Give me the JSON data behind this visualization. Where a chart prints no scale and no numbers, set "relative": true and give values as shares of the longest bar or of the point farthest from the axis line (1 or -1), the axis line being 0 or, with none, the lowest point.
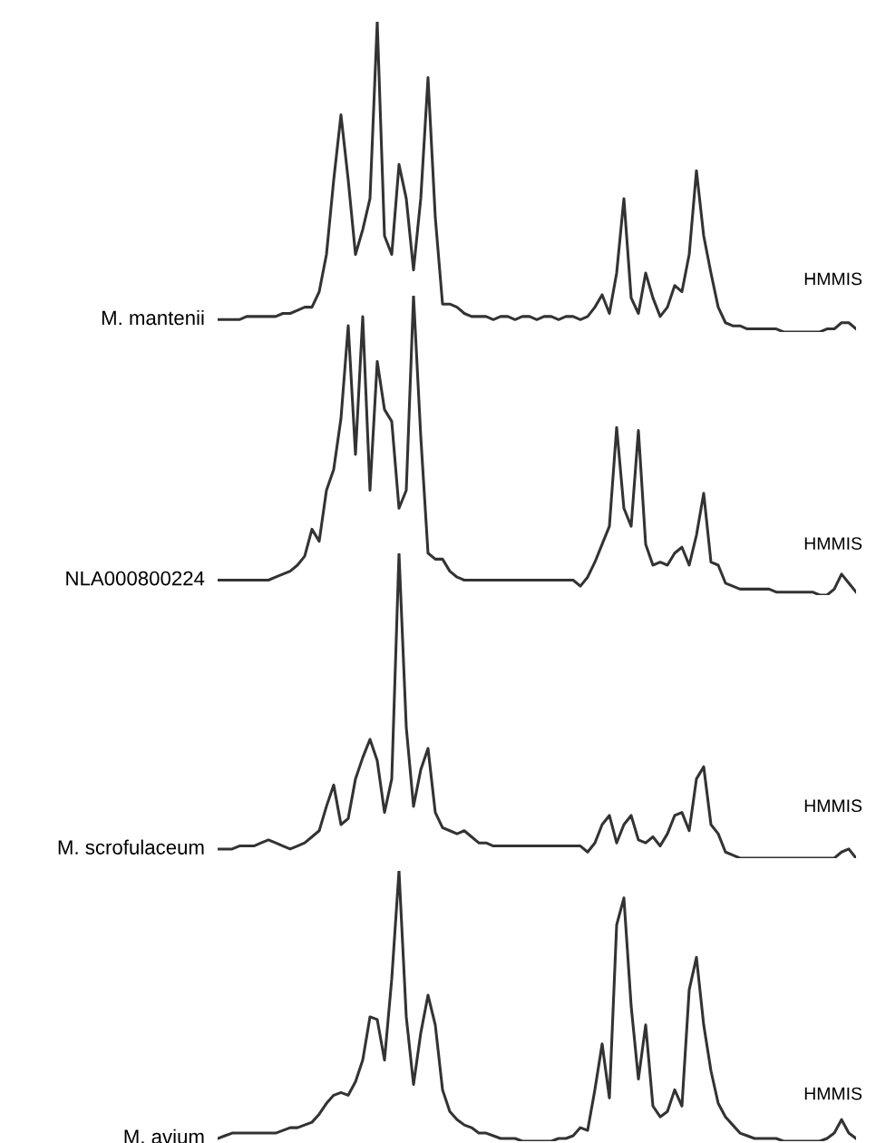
{
  "chart_data": [
    {
      "type": "line",
      "relative": true,
      "annotations": [
        "HMMIS"
      ],
      "categories": [
        null,
        null,
        null,
        null,
        null,
        null,
        null,
        null,
        null,
        null,
        null,
        null,
        null,
        null,
        null,
        null,
        null,
        null,
        null,
        null,
        null,
        null,
        null,
        null,
        null,
        null,
        null,
        null,
        null,
        null,
        null,
        null,
        null,
        null,
        null,
        null,
        null,
        null,
        null,
        null,
        null,
        null,
        null,
        null,
        null,
        null,
        null,
        null,
        null,
        null,
        null,
        null,
        null,
        null,
        null,
        null,
        null,
        null,
        null,
        null,
        null,
        null,
        null,
        null,
        null,
        null,
        null,
        null,
        null,
        null,
        null,
        null,
        null,
        null,
        null,
        null,
        null,
        null,
        null,
        null,
        null,
        null,
        null,
        null,
        null,
        null,
        null,
        null,
        null
      ],
      "series": [
        {
          "name": "M. mantenii",
          "color": "#333333",
          "values": [
            0.04,
            0.04,
            0.04,
            0.04,
            0.05,
            0.05,
            0.05,
            0.05,
            0.05,
            0.06,
            0.06,
            0.07,
            0.08,
            0.08,
            0.13,
            0.25,
            0.49,
            0.7,
            0.49,
            0.25,
            0.33,
            0.43,
            1.0,
            0.31,
            0.25,
            0.54,
            0.43,
            0.2,
            0.43,
            0.82,
            0.37,
            0.09,
            0.09,
            0.08,
            0.06,
            0.05,
            0.05,
            0.05,
            0.04,
            0.05,
            0.05,
            0.04,
            0.05,
            0.05,
            0.04,
            0.05,
            0.05,
            0.04,
            0.05,
            0.05,
            0.04,
            0.05,
            0.08,
            0.12,
            0.06,
            0.19,
            0.43,
            0.11,
            0.06,
            0.19,
            0.11,
            0.05,
            0.08,
            0.15,
            0.13,
            0.25,
            0.52,
            0.31,
            0.19,
            0.08,
            0.03,
            0.02,
            0.02,
            0.01,
            0.01,
            0.01,
            0.01,
            0.01,
            0,
            0,
            0,
            0,
            0,
            0,
            0.01,
            0.01,
            0.03,
            0.03,
            0.01
          ]
        }
      ]
    },
    {
      "type": "line",
      "relative": true,
      "annotations": [
        "HMMIS"
      ],
      "categories": [
        null,
        null,
        null,
        null,
        null,
        null,
        null,
        null,
        null,
        null,
        null,
        null,
        null,
        null,
        null,
        null,
        null,
        null,
        null,
        null,
        null,
        null,
        null,
        null,
        null,
        null,
        null,
        null,
        null,
        null,
        null,
        null,
        null,
        null,
        null,
        null,
        null,
        null,
        null,
        null,
        null,
        null,
        null,
        null,
        null,
        null,
        null,
        null,
        null,
        null,
        null,
        null,
        null,
        null,
        null,
        null,
        null,
        null,
        null,
        null,
        null,
        null,
        null,
        null,
        null,
        null,
        null,
        null,
        null,
        null,
        null,
        null,
        null,
        null,
        null,
        null,
        null,
        null,
        null,
        null,
        null,
        null,
        null,
        null,
        null,
        null,
        null,
        null,
        null
      ],
      "series": [
        {
          "name": "NLA000800224",
          "color": "#333333",
          "values": [
            0.05,
            0.05,
            0.05,
            0.05,
            0.05,
            0.05,
            0.05,
            0.05,
            0.06,
            0.07,
            0.08,
            0.1,
            0.13,
            0.22,
            0.18,
            0.35,
            0.42,
            0.59,
            0.9,
            0.47,
            0.93,
            0.35,
            0.78,
            0.62,
            0.58,
            0.29,
            0.35,
            1.0,
            0.53,
            0.14,
            0.12,
            0.12,
            0.08,
            0.06,
            0.05,
            0.05,
            0.05,
            0.05,
            0.05,
            0.05,
            0.05,
            0.05,
            0.05,
            0.05,
            0.05,
            0.05,
            0.05,
            0.05,
            0.05,
            0.05,
            0.03,
            0.06,
            0.11,
            0.17,
            0.23,
            0.56,
            0.29,
            0.23,
            0.55,
            0.17,
            0.1,
            0.11,
            0.1,
            0.14,
            0.16,
            0.1,
            0.2,
            0.34,
            0.11,
            0.1,
            0.04,
            0.03,
            0.02,
            0.02,
            0.02,
            0.02,
            0.02,
            0.01,
            0.01,
            0.01,
            0.01,
            0.01,
            0.01,
            0,
            0,
            0.02,
            0.07,
            0.04,
            0.01
          ]
        }
      ]
    },
    {
      "type": "line",
      "relative": true,
      "annotations": [
        "HMMIS"
      ],
      "categories": [
        null,
        null,
        null,
        null,
        null,
        null,
        null,
        null,
        null,
        null,
        null,
        null,
        null,
        null,
        null,
        null,
        null,
        null,
        null,
        null,
        null,
        null,
        null,
        null,
        null,
        null,
        null,
        null,
        null,
        null,
        null,
        null,
        null,
        null,
        null,
        null,
        null,
        null,
        null,
        null,
        null,
        null,
        null,
        null,
        null,
        null,
        null,
        null,
        null,
        null,
        null,
        null,
        null,
        null,
        null,
        null,
        null,
        null,
        null,
        null,
        null,
        null,
        null,
        null,
        null,
        null,
        null,
        null,
        null,
        null,
        null,
        null,
        null,
        null,
        null,
        null,
        null,
        null,
        null,
        null,
        null,
        null,
        null,
        null,
        null,
        null,
        null,
        null,
        null
      ],
      "series": [
        {
          "name": "M. scrofulaceum",
          "color": "#333333",
          "values": [
            0.03,
            0.03,
            0.03,
            0.04,
            0.04,
            0.04,
            0.05,
            0.06,
            0.05,
            0.04,
            0.03,
            0.04,
            0.05,
            0.07,
            0.09,
            0.17,
            0.24,
            0.11,
            0.13,
            0.26,
            0.33,
            0.39,
            0.32,
            0.15,
            0.26,
            1.0,
            0.43,
            0.17,
            0.29,
            0.36,
            0.15,
            0.1,
            0.09,
            0.08,
            0.09,
            0.07,
            0.05,
            0.05,
            0.04,
            0.04,
            0.04,
            0.04,
            0.04,
            0.04,
            0.04,
            0.04,
            0.04,
            0.04,
            0.04,
            0.04,
            0.04,
            0.02,
            0.05,
            0.11,
            0.14,
            0.05,
            0.11,
            0.14,
            0.06,
            0.05,
            0.07,
            0.04,
            0.08,
            0.14,
            0.15,
            0.09,
            0.26,
            0.3,
            0.11,
            0.08,
            0.02,
            0.01,
            0,
            0,
            0,
            0,
            0,
            0,
            0,
            0,
            0,
            0,
            0,
            0,
            0,
            0,
            0.02,
            0.03,
            0
          ]
        }
      ]
    },
    {
      "type": "line",
      "relative": true,
      "annotations": [
        "HMMIS"
      ],
      "categories": [
        null,
        null,
        null,
        null,
        null,
        null,
        null,
        null,
        null,
        null,
        null,
        null,
        null,
        null,
        null,
        null,
        null,
        null,
        null,
        null,
        null,
        null,
        null,
        null,
        null,
        null,
        null,
        null,
        null,
        null,
        null,
        null,
        null,
        null,
        null,
        null,
        null,
        null,
        null,
        null,
        null,
        null,
        null,
        null,
        null,
        null,
        null,
        null,
        null,
        null,
        null,
        null,
        null,
        null,
        null,
        null,
        null,
        null,
        null,
        null,
        null,
        null,
        null,
        null,
        null,
        null,
        null,
        null,
        null,
        null,
        null,
        null,
        null,
        null,
        null,
        null,
        null,
        null,
        null,
        null,
        null,
        null,
        null,
        null,
        null,
        null,
        null,
        null,
        null
      ],
      "series": [
        {
          "name": "M. avium",
          "color": "#333333",
          "values": [
            0.01,
            0.02,
            0.03,
            0.03,
            0.03,
            0.03,
            0.03,
            0.03,
            0.03,
            0.04,
            0.05,
            0.05,
            0.06,
            0.07,
            0.1,
            0.14,
            0.17,
            0.18,
            0.17,
            0.22,
            0.3,
            0.46,
            0.45,
            0.3,
            0.6,
            1.0,
            0.46,
            0.21,
            0.4,
            0.54,
            0.43,
            0.19,
            0.11,
            0.08,
            0.06,
            0.05,
            0.03,
            0.03,
            0.02,
            0.01,
            0.01,
            0.01,
            0,
            0,
            0,
            0,
            0,
            0.01,
            0.01,
            0.02,
            0.05,
            0.04,
            0.19,
            0.36,
            0.16,
            0.8,
            0.9,
            0.5,
            0.23,
            0.43,
            0.13,
            0.09,
            0.11,
            0.19,
            0.13,
            0.56,
            0.68,
            0.43,
            0.26,
            0.14,
            0.09,
            0.06,
            0.03,
            0.02,
            0.01,
            0.01,
            0.01,
            0.01,
            0,
            0,
            0,
            0,
            0,
            0,
            0.01,
            0.03,
            0.08,
            0.03,
            0.01
          ]
        }
      ]
    }
  ]
}
